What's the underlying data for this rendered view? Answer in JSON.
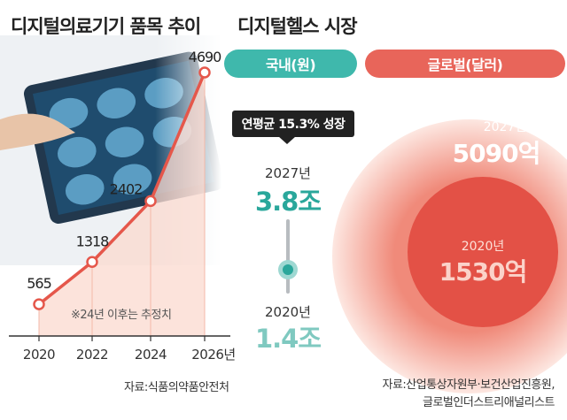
{
  "left_title": "디지털의료기기 품목 추이",
  "right_title": "디지털헬스 시장",
  "projection_note": "※24년 이후는 추정치",
  "left_source": "자료:식품의약품안전처",
  "right_source_line1": "자료:산업통상자원부·보건산업진흥원,",
  "right_source_line2": "글로벌인더스트리애널리스트",
  "domestic_pill": "국내(원)",
  "global_pill": "글로벌(달러)",
  "growth_callout": "연평균 15.3% 성장",
  "domestic": {
    "y2027_label": "2027년",
    "y2027_value": "3.8조",
    "y2020_label": "2020년",
    "y2020_value": "1.4조"
  },
  "global": {
    "y2027_label": "2027년",
    "y2027_value": "5090억",
    "y2020_label": "2020년",
    "y2020_value": "1530억"
  },
  "colors": {
    "line": "#e5574b",
    "teal": "#2aa79b",
    "pill_teal": "#3fb8ac",
    "pill_red": "#e8655a",
    "big_circle": "#f7b9aa",
    "small_circle": "#e35146"
  },
  "chart_data": [
    {
      "type": "line",
      "title": "디지털의료기기 품목 추이",
      "x_tick_labels": [
        "2020",
        "2022",
        "2024",
        "2026년"
      ],
      "x": [
        2020,
        2022,
        2024,
        2026
      ],
      "y": [
        565,
        1318,
        2402,
        4690
      ],
      "ylim": [
        0,
        4690
      ],
      "grid": false
    },
    {
      "type": "bubble",
      "title": "디지털헬스 시장",
      "series": [
        {
          "name": "국내(원)",
          "x": [
            "2020년",
            "2027년"
          ],
          "values": [
            "1.4조",
            "3.8조"
          ],
          "cagr": "연평균 15.3% 성장"
        },
        {
          "name": "글로벌(달러)",
          "x": [
            "2020년",
            "2027년"
          ],
          "values": [
            "1530억",
            "5090억"
          ]
        }
      ]
    }
  ]
}
